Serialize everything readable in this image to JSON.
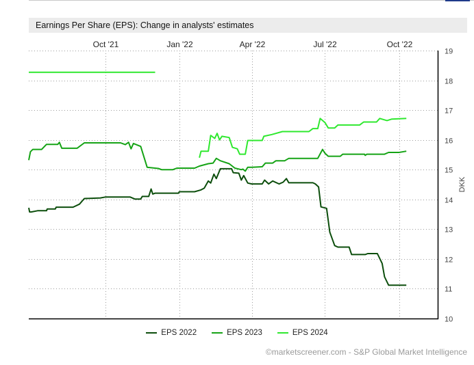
{
  "title": "Earnings Per Share (EPS): Change in analysts' estimates",
  "credit": "©marketscreener.com - S&P Global Market Intelligence",
  "chart_data": {
    "type": "line",
    "xlabel": "",
    "ylabel": "DKK",
    "x_range": [
      "2021-06-28",
      "2022-11-18"
    ],
    "x_ticks": [
      {
        "date": "2021-10-01",
        "label": "Oct '21"
      },
      {
        "date": "2022-01-01",
        "label": "Jan '22"
      },
      {
        "date": "2022-04-01",
        "label": "Apr '22"
      },
      {
        "date": "2022-07-01",
        "label": "Jul '22"
      },
      {
        "date": "2022-10-01",
        "label": "Oct '22"
      }
    ],
    "ylim": [
      10,
      19
    ],
    "y_ticks": [
      10,
      11,
      12,
      13,
      14,
      15,
      16,
      17,
      18,
      19
    ],
    "grid": true,
    "legend_position": "bottom",
    "series": [
      {
        "name": "EPS 2022",
        "color": "#0b4d0b",
        "points": [
          [
            "2021-06-28",
            13.72
          ],
          [
            "2021-06-29",
            13.58
          ],
          [
            "2021-07-01",
            13.58
          ],
          [
            "2021-07-09",
            13.62
          ],
          [
            "2021-07-20",
            13.62
          ],
          [
            "2021-07-21",
            13.68
          ],
          [
            "2021-07-31",
            13.68
          ],
          [
            "2021-08-01",
            13.74
          ],
          [
            "2021-08-22",
            13.74
          ],
          [
            "2021-08-30",
            13.84
          ],
          [
            "2021-09-05",
            14.03
          ],
          [
            "2021-09-25",
            14.05
          ],
          [
            "2021-10-01",
            14.08
          ],
          [
            "2021-11-01",
            14.08
          ],
          [
            "2021-11-07",
            14.01
          ],
          [
            "2021-11-14",
            14.01
          ],
          [
            "2021-11-16",
            14.1
          ],
          [
            "2021-11-24",
            14.1
          ],
          [
            "2021-11-27",
            14.35
          ],
          [
            "2021-11-29",
            14.18
          ],
          [
            "2021-12-02",
            14.21
          ],
          [
            "2021-12-31",
            14.21
          ],
          [
            "2022-01-01",
            14.26
          ],
          [
            "2022-01-20",
            14.26
          ],
          [
            "2022-01-28",
            14.32
          ],
          [
            "2022-02-01",
            14.38
          ],
          [
            "2022-02-06",
            14.62
          ],
          [
            "2022-02-09",
            14.55
          ],
          [
            "2022-02-13",
            14.85
          ],
          [
            "2022-02-16",
            14.7
          ],
          [
            "2022-02-21",
            15.03
          ],
          [
            "2022-03-07",
            15.03
          ],
          [
            "2022-03-09",
            14.9
          ],
          [
            "2022-03-16",
            14.88
          ],
          [
            "2022-03-19",
            14.65
          ],
          [
            "2022-03-22",
            14.8
          ],
          [
            "2022-03-27",
            14.55
          ],
          [
            "2022-04-01",
            14.52
          ],
          [
            "2022-04-14",
            14.52
          ],
          [
            "2022-04-17",
            14.65
          ],
          [
            "2022-04-22",
            14.52
          ],
          [
            "2022-04-27",
            14.62
          ],
          [
            "2022-05-05",
            14.52
          ],
          [
            "2022-05-10",
            14.58
          ],
          [
            "2022-05-14",
            14.7
          ],
          [
            "2022-05-17",
            14.56
          ],
          [
            "2022-06-16",
            14.56
          ],
          [
            "2022-06-19",
            14.52
          ],
          [
            "2022-06-23",
            14.42
          ],
          [
            "2022-06-26",
            13.75
          ],
          [
            "2022-07-03",
            13.7
          ],
          [
            "2022-07-07",
            12.9
          ],
          [
            "2022-07-13",
            12.45
          ],
          [
            "2022-07-17",
            12.4
          ],
          [
            "2022-07-31",
            12.4
          ],
          [
            "2022-08-03",
            12.15
          ],
          [
            "2022-08-20",
            12.15
          ],
          [
            "2022-08-23",
            12.18
          ],
          [
            "2022-09-04",
            12.18
          ],
          [
            "2022-09-10",
            11.85
          ],
          [
            "2022-09-13",
            11.4
          ],
          [
            "2022-09-18",
            11.12
          ],
          [
            "2022-10-10",
            11.12
          ]
        ]
      },
      {
        "name": "EPS 2023",
        "color": "#15a315",
        "points": [
          [
            "2021-06-28",
            15.32
          ],
          [
            "2021-06-30",
            15.6
          ],
          [
            "2021-07-03",
            15.68
          ],
          [
            "2021-07-14",
            15.68
          ],
          [
            "2021-07-20",
            15.85
          ],
          [
            "2021-08-03",
            15.85
          ],
          [
            "2021-08-05",
            15.92
          ],
          [
            "2021-08-08",
            15.72
          ],
          [
            "2021-08-27",
            15.72
          ],
          [
            "2021-09-05",
            15.9
          ],
          [
            "2021-10-20",
            15.9
          ],
          [
            "2021-10-26",
            15.84
          ],
          [
            "2021-10-30",
            15.92
          ],
          [
            "2021-11-02",
            15.7
          ],
          [
            "2021-11-05",
            15.88
          ],
          [
            "2021-11-14",
            15.78
          ],
          [
            "2021-11-22",
            15.08
          ],
          [
            "2021-12-06",
            15.04
          ],
          [
            "2021-12-10",
            15.0
          ],
          [
            "2021-12-24",
            15.0
          ],
          [
            "2021-12-29",
            15.05
          ],
          [
            "2022-01-20",
            15.05
          ],
          [
            "2022-01-26",
            15.12
          ],
          [
            "2022-02-06",
            15.2
          ],
          [
            "2022-02-12",
            15.22
          ],
          [
            "2022-02-16",
            15.38
          ],
          [
            "2022-02-21",
            15.3
          ],
          [
            "2022-03-04",
            15.2
          ],
          [
            "2022-03-11",
            15.05
          ],
          [
            "2022-03-19",
            15.0
          ],
          [
            "2022-03-21",
            15.02
          ],
          [
            "2022-03-24",
            14.95
          ],
          [
            "2022-03-27",
            15.08
          ],
          [
            "2022-04-01",
            15.08
          ],
          [
            "2022-04-14",
            15.1
          ],
          [
            "2022-04-18",
            15.22
          ],
          [
            "2022-04-27",
            15.22
          ],
          [
            "2022-05-01",
            15.3
          ],
          [
            "2022-05-12",
            15.3
          ],
          [
            "2022-05-17",
            15.38
          ],
          [
            "2022-06-22",
            15.38
          ],
          [
            "2022-06-28",
            15.68
          ],
          [
            "2022-07-01",
            15.55
          ],
          [
            "2022-07-05",
            15.45
          ],
          [
            "2022-07-20",
            15.45
          ],
          [
            "2022-07-23",
            15.52
          ],
          [
            "2022-08-19",
            15.52
          ],
          [
            "2022-08-20",
            15.48
          ],
          [
            "2022-08-22",
            15.52
          ],
          [
            "2022-09-13",
            15.52
          ],
          [
            "2022-09-18",
            15.58
          ],
          [
            "2022-10-01",
            15.58
          ],
          [
            "2022-10-10",
            15.62
          ]
        ]
      },
      {
        "name": "EPS 2024",
        "color": "#2ee82e",
        "points": [
          [
            "2021-06-28",
            18.27
          ],
          [
            "2021-12-02",
            18.27
          ],
          null,
          [
            "2022-01-26",
            15.4
          ],
          [
            "2022-01-28",
            15.62
          ],
          [
            "2022-02-06",
            15.62
          ],
          [
            "2022-02-09",
            16.15
          ],
          [
            "2022-02-14",
            16.05
          ],
          [
            "2022-02-17",
            16.22
          ],
          [
            "2022-02-20",
            16.0
          ],
          [
            "2022-02-23",
            16.12
          ],
          [
            "2022-03-04",
            16.08
          ],
          [
            "2022-03-08",
            15.75
          ],
          [
            "2022-03-14",
            15.7
          ],
          [
            "2022-03-17",
            15.52
          ],
          [
            "2022-03-24",
            15.52
          ],
          [
            "2022-03-27",
            15.98
          ],
          [
            "2022-04-14",
            15.98
          ],
          [
            "2022-04-16",
            16.12
          ],
          [
            "2022-04-26",
            16.18
          ],
          [
            "2022-05-09",
            16.28
          ],
          [
            "2022-06-11",
            16.28
          ],
          [
            "2022-06-16",
            16.38
          ],
          [
            "2022-06-22",
            16.38
          ],
          [
            "2022-06-25",
            16.72
          ],
          [
            "2022-07-01",
            16.58
          ],
          [
            "2022-07-05",
            16.4
          ],
          [
            "2022-07-13",
            16.4
          ],
          [
            "2022-07-17",
            16.5
          ],
          [
            "2022-08-13",
            16.5
          ],
          [
            "2022-08-18",
            16.6
          ],
          [
            "2022-09-03",
            16.6
          ],
          [
            "2022-09-07",
            16.72
          ],
          [
            "2022-09-16",
            16.65
          ],
          [
            "2022-09-22",
            16.7
          ],
          [
            "2022-10-10",
            16.72
          ]
        ]
      }
    ]
  }
}
